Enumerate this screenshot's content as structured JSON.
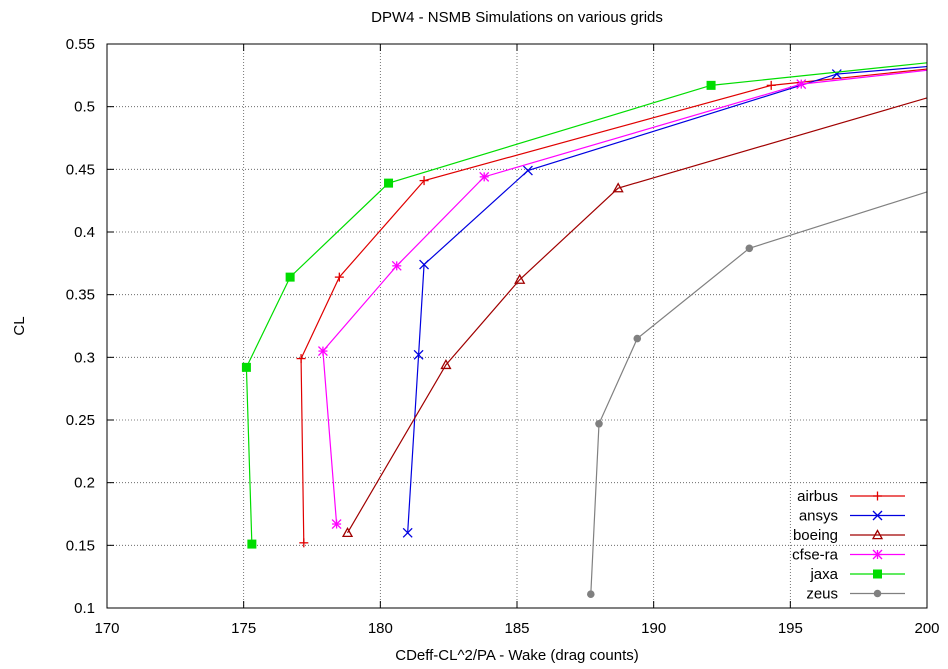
{
  "chart_data": {
    "type": "line",
    "title": "DPW4 - NSMB Simulations on various grids",
    "xlabel": "CDeff-CL^2/PA - Wake (drag counts)",
    "ylabel": "CL",
    "xlim": [
      170,
      200
    ],
    "ylim": [
      0.1,
      0.55
    ],
    "xticks": [
      170,
      175,
      180,
      185,
      190,
      195,
      200
    ],
    "yticks": [
      0.1,
      0.15,
      0.2,
      0.25,
      0.3,
      0.35,
      0.4,
      0.45,
      0.5,
      0.55
    ],
    "grid": true,
    "legend_position": "bottom-right",
    "series": [
      {
        "name": "airbus",
        "color": "#e00000",
        "marker": "plus",
        "points": [
          [
            177.2,
            0.152
          ],
          [
            177.1,
            0.299
          ],
          [
            178.5,
            0.364
          ],
          [
            181.6,
            0.441
          ],
          [
            194.3,
            0.517
          ],
          [
            200.0,
            0.53
          ]
        ]
      },
      {
        "name": "ansys",
        "color": "#0000e0",
        "marker": "cross",
        "points": [
          [
            181.0,
            0.16
          ],
          [
            181.4,
            0.302
          ],
          [
            181.6,
            0.374
          ],
          [
            185.4,
            0.449
          ],
          [
            196.7,
            0.526
          ],
          [
            200.0,
            0.532
          ]
        ]
      },
      {
        "name": "boeing",
        "color": "#a00000",
        "marker": "triangle",
        "points": [
          [
            178.8,
            0.16
          ],
          [
            182.4,
            0.294
          ],
          [
            185.1,
            0.362
          ],
          [
            188.7,
            0.435
          ],
          [
            200.0,
            0.507
          ]
        ]
      },
      {
        "name": "cfse-ra",
        "color": "#ff00ff",
        "marker": "star",
        "points": [
          [
            178.4,
            0.167
          ],
          [
            177.9,
            0.305
          ],
          [
            180.6,
            0.373
          ],
          [
            183.8,
            0.444
          ],
          [
            195.4,
            0.518
          ],
          [
            200.0,
            0.529
          ]
        ]
      },
      {
        "name": "jaxa",
        "color": "#00dd00",
        "marker": "square",
        "points": [
          [
            175.3,
            0.151
          ],
          [
            175.1,
            0.292
          ],
          [
            176.7,
            0.364
          ],
          [
            180.3,
            0.439
          ],
          [
            192.1,
            0.517
          ],
          [
            200.0,
            0.535
          ]
        ]
      },
      {
        "name": "zeus",
        "color": "#808080",
        "marker": "circle",
        "points": [
          [
            187.7,
            0.111
          ],
          [
            188.0,
            0.247
          ],
          [
            189.4,
            0.315
          ],
          [
            193.5,
            0.387
          ],
          [
            200.0,
            0.432
          ]
        ]
      }
    ]
  }
}
